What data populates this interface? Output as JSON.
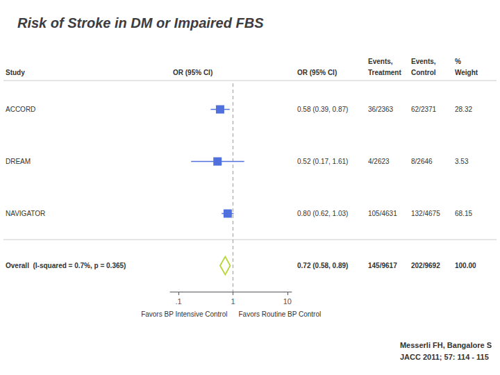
{
  "chart_data": {
    "type": "forest",
    "title": "Risk of Stroke in DM or Impaired FBS",
    "categories": [
      "ACCORD",
      "DREAM",
      "NAVIGATOR",
      "Overall  (I-squared = 0.7%, p = 0.365)"
    ],
    "series": [
      {
        "marker": "square",
        "values": [
          0.58,
          0.52,
          0.8,
          null
        ],
        "ci_lower": [
          0.39,
          0.17,
          0.62,
          null
        ],
        "ci_upper": [
          0.87,
          1.61,
          1.03,
          null
        ]
      },
      {
        "marker": "diamond",
        "values": [
          null,
          null,
          null,
          0.72
        ],
        "ci_lower": [
          null,
          null,
          null,
          0.58
        ],
        "ci_upper": [
          null,
          null,
          null,
          0.89
        ]
      }
    ],
    "log": "x",
    "xlim": [
      0.07,
      12.0
    ],
    "xticks": [
      {
        "value": 0.1,
        "label": ".1"
      },
      1,
      10
    ],
    "grid": false,
    "reference_line": 1,
    "table": {
      "study_header": "Study",
      "plot_header": "OR (95% CI)",
      "columns": [
        {
          "header": [
            "OR (95% CI)"
          ],
          "cells": [
            "0.58 (0.39, 0.87)",
            "0.52 (0.17, 1.61)",
            "0.80 (0.62, 1.03)",
            "0.72 (0.58, 0.89)"
          ]
        },
        {
          "header": [
            "Events,",
            "Treatment"
          ],
          "cells": [
            "36/2363",
            "4/2623",
            "105/4631",
            "145/9617"
          ]
        },
        {
          "header": [
            "Events,",
            "Control"
          ],
          "cells": [
            "62/2371",
            "8/2646",
            "132/4675",
            "202/9692"
          ]
        },
        {
          "header": [
            "%",
            "Weight"
          ],
          "cells": [
            "28.32",
            "3.53",
            "68.15",
            "100.00"
          ]
        }
      ]
    },
    "annotations": [
      "Favors BP Intensive Control",
      "Favors Routine BP Control",
      "Messerli FH, Bangalore S\nJACC 2011; 57: 114 - 115"
    ]
  }
}
